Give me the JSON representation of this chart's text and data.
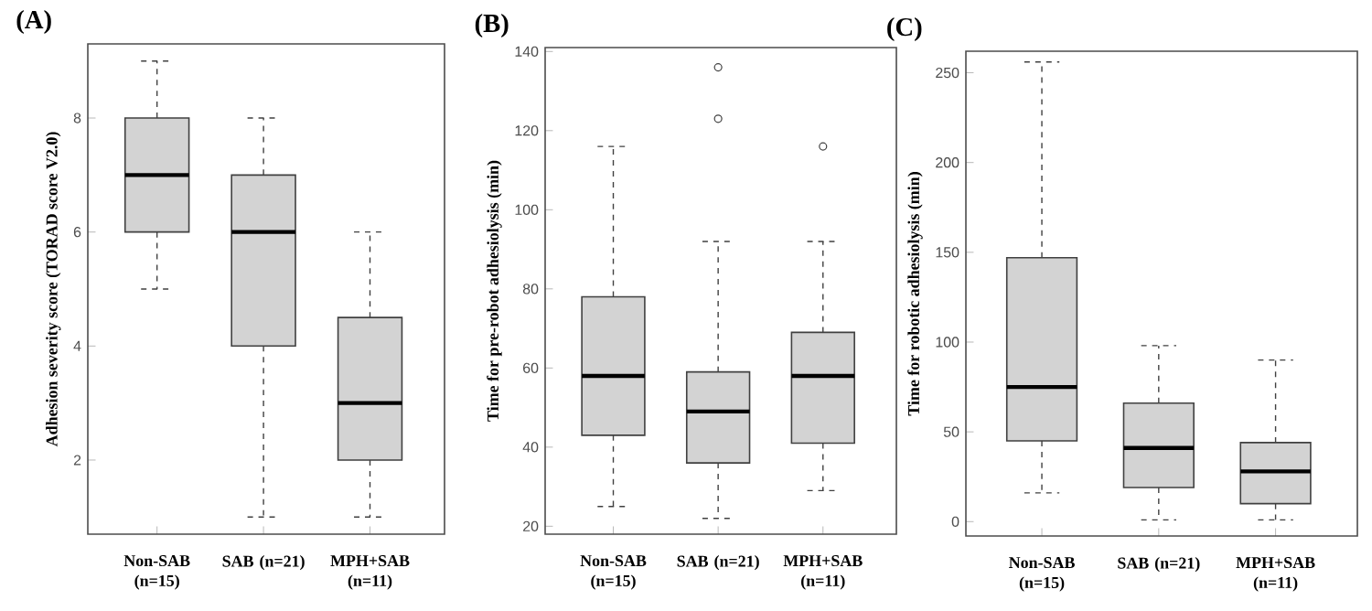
{
  "chart_data": [
    {
      "type": "box",
      "title": "(A)",
      "ylabel": "Adhesion severity score (TORAD score V2.0)",
      "categories": [
        "Non-SAB (n=15)",
        "SAB (n=21)",
        "MPH+SAB (n=11)"
      ],
      "color": "#d3d3d3",
      "ylim": [
        0.7,
        9.3
      ],
      "yticks": [
        2,
        4,
        6,
        8
      ],
      "grid": false,
      "boxes": [
        {
          "low": 5,
          "q1": 6,
          "median": 7,
          "q3": 8,
          "high": 9
        },
        {
          "low": 1,
          "q1": 4,
          "median": 6,
          "q3": 7,
          "high": 8
        },
        {
          "low": 1,
          "q1": 2,
          "median": 3,
          "q3": 4.5,
          "high": 6
        }
      ]
    },
    {
      "type": "box",
      "title": "(B)",
      "ylabel": "Time for pre-robot adhesiolysis (min)",
      "categories": [
        "Non-SAB (n=15)",
        "SAB (n=21)",
        "MPH+SAB (n=11)"
      ],
      "color": "#d3d3d3",
      "ylim": [
        18,
        141
      ],
      "yticks": [
        20,
        40,
        60,
        80,
        100,
        120,
        140
      ],
      "grid": false,
      "boxes": [
        {
          "low": 25,
          "q1": 43,
          "median": 58,
          "q3": 78,
          "high": 116
        },
        {
          "low": 22,
          "q1": 36,
          "median": 49,
          "q3": 59,
          "high": 92,
          "outliers": [
            123,
            136
          ]
        },
        {
          "low": 29,
          "q1": 41,
          "median": 58,
          "q3": 69,
          "high": 92,
          "outliers": [
            116
          ]
        }
      ]
    },
    {
      "type": "box",
      "title": "(C)",
      "ylabel": "Time for robotic adhesiolysis (min)",
      "categories": [
        "Non-SAB (n=15)",
        "SAB (n=21)",
        "MPH+SAB (n=11)"
      ],
      "color": "#d3d3d3",
      "ylim": [
        -8,
        262
      ],
      "yticks": [
        0,
        50,
        100,
        150,
        200,
        250
      ],
      "grid": false,
      "boxes": [
        {
          "low": 16,
          "q1": 45,
          "median": 75,
          "q3": 147,
          "high": 256
        },
        {
          "low": 1,
          "q1": 19,
          "median": 41,
          "q3": 66,
          "high": 98
        },
        {
          "low": 1,
          "q1": 10,
          "median": 28,
          "q3": 44,
          "high": 90
        }
      ]
    }
  ]
}
